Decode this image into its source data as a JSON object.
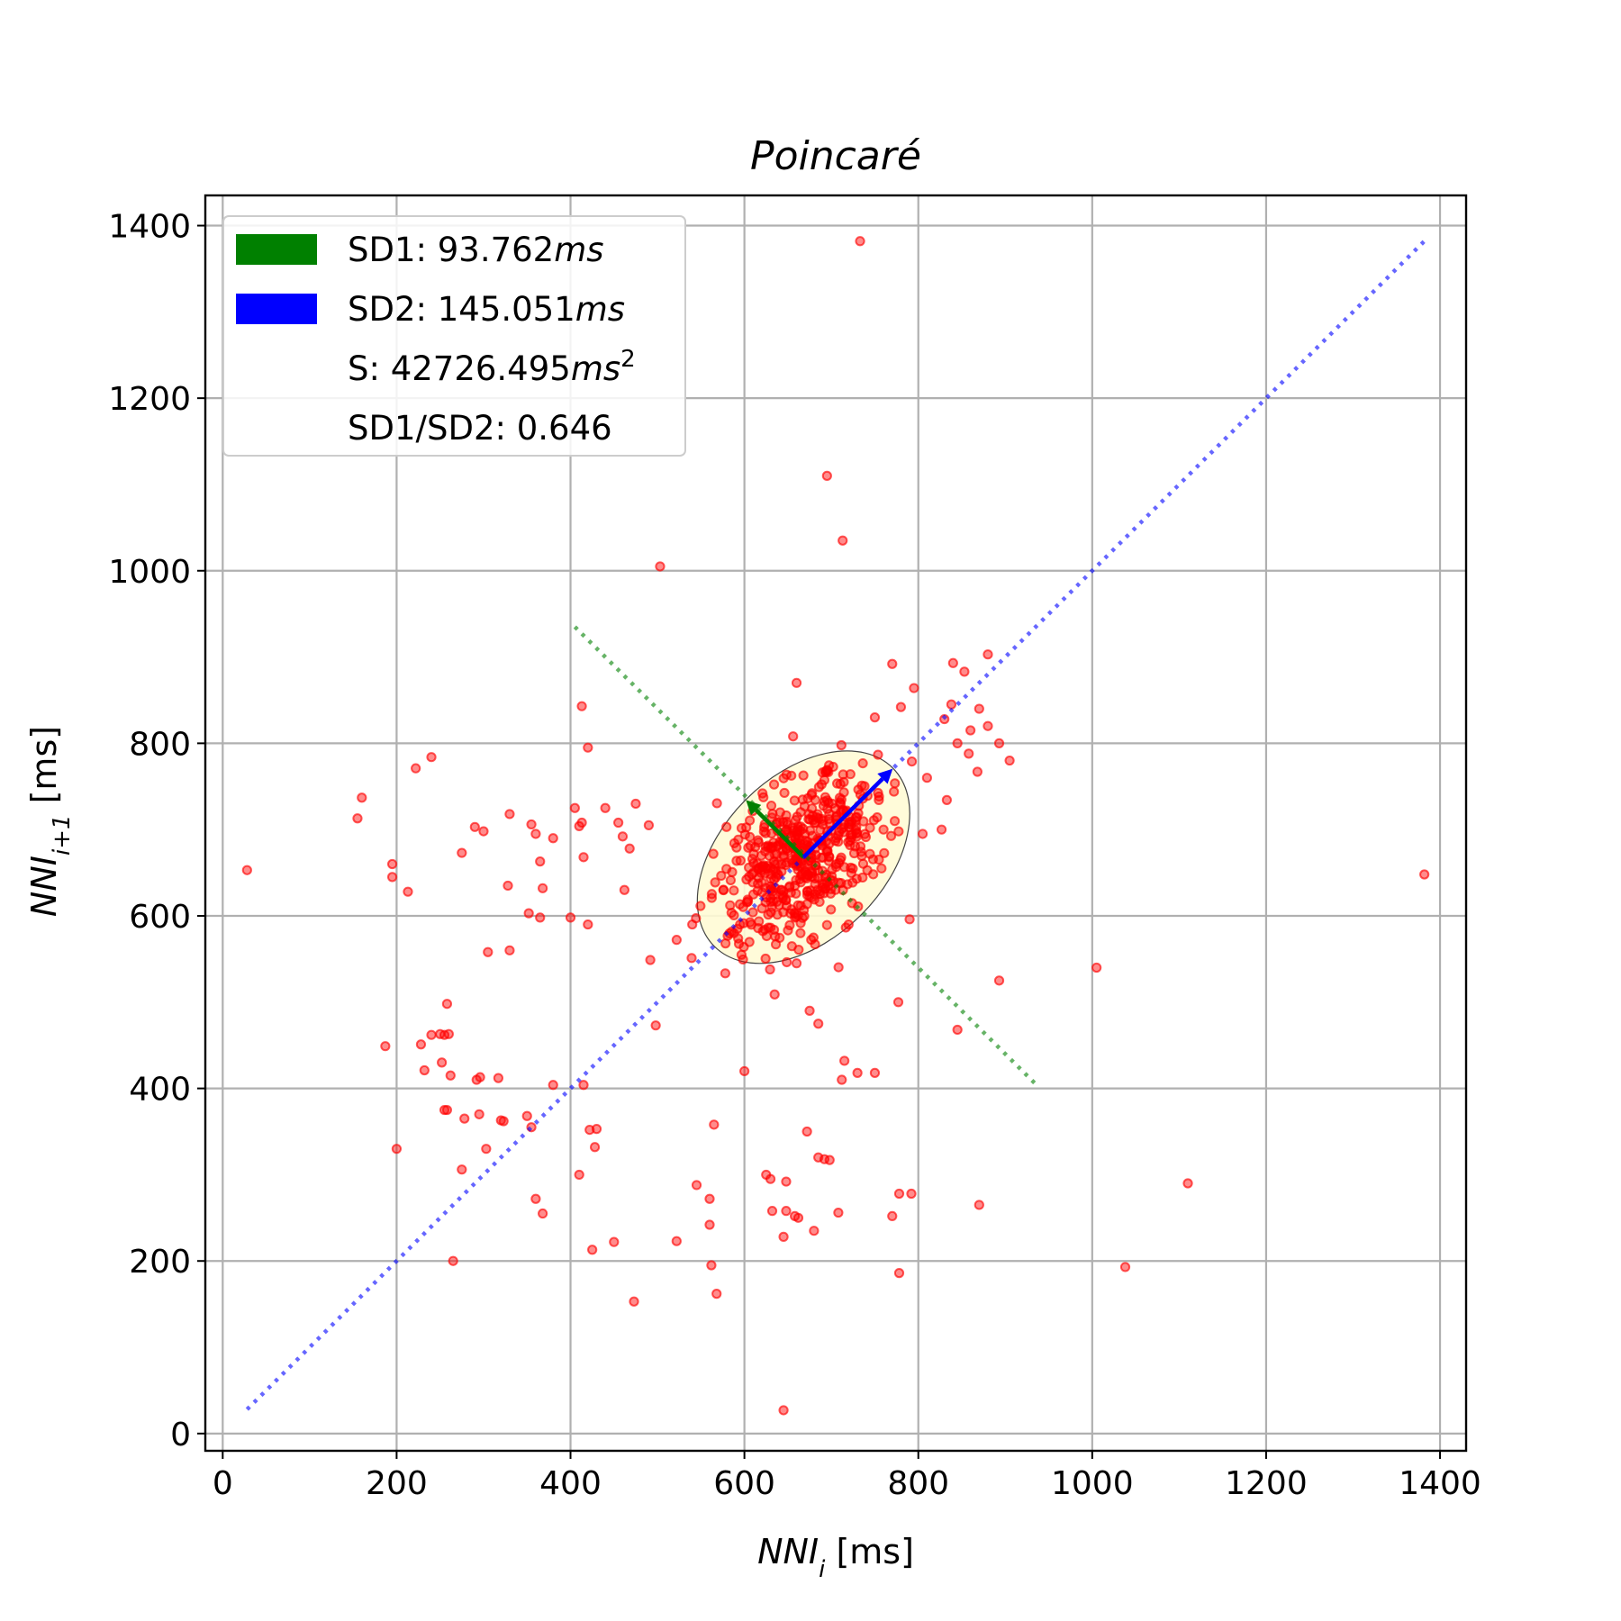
{
  "chart_data": {
    "type": "scatter",
    "title": "Poincaré",
    "xlabel": "NNI_i [ms]",
    "ylabel": "NNI_i+1 [ms]",
    "xlim": [
      -20,
      1430
    ],
    "ylim": [
      -20,
      1435
    ],
    "xticks": [
      0,
      200,
      400,
      600,
      800,
      1000,
      1200,
      1400
    ],
    "yticks": [
      0,
      200,
      400,
      600,
      800,
      1000,
      1200,
      1400
    ],
    "grid": true,
    "legend_position": "top-left",
    "legend": [
      {
        "label": "SD1: 93.762",
        "unit": "ms",
        "color": "#008000"
      },
      {
        "label": "SD2: 145.051",
        "unit": "ms",
        "color": "#0000ff"
      },
      {
        "label": "S: 42726.495",
        "unit": "ms",
        "unit_exp": "2",
        "color": ""
      },
      {
        "label": "SD1/SD2: 0.646",
        "unit": "",
        "color": ""
      }
    ],
    "center": [
      668,
      668
    ],
    "sd1": 93.762,
    "sd2": 145.051,
    "identity_line": {
      "from": [
        28,
        28
      ],
      "to": [
        1383,
        1383
      ],
      "color": "#0000ff"
    },
    "sd1_line": {
      "from": [
        405,
        935
      ],
      "to": [
        935,
        405
      ],
      "color": "#008000"
    },
    "ellipse": {
      "fill": "#fffbd5",
      "stroke": "#444444"
    },
    "marker_color": "#ff0000",
    "cluster": {
      "count": 520,
      "center": [
        668,
        668
      ],
      "spread_major": 60,
      "spread_minor": 35
    },
    "points": [
      [
        28,
        653
      ],
      [
        155,
        713
      ],
      [
        160,
        737
      ],
      [
        195,
        660
      ],
      [
        195,
        645
      ],
      [
        213,
        628
      ],
      [
        222,
        771
      ],
      [
        240,
        784
      ],
      [
        290,
        703
      ],
      [
        300,
        698
      ],
      [
        275,
        673
      ],
      [
        330,
        718
      ],
      [
        328,
        635
      ],
      [
        355,
        706
      ],
      [
        360,
        695
      ],
      [
        365,
        663
      ],
      [
        368,
        632
      ],
      [
        352,
        603
      ],
      [
        365,
        598
      ],
      [
        380,
        690
      ],
      [
        305,
        558
      ],
      [
        330,
        560
      ],
      [
        400,
        598
      ],
      [
        405,
        725
      ],
      [
        410,
        704
      ],
      [
        413,
        708
      ],
      [
        415,
        668
      ],
      [
        413,
        843
      ],
      [
        420,
        795
      ],
      [
        420,
        590
      ],
      [
        440,
        725
      ],
      [
        455,
        708
      ],
      [
        460,
        692
      ],
      [
        462,
        630
      ],
      [
        468,
        678
      ],
      [
        475,
        730
      ],
      [
        490,
        705
      ],
      [
        503,
        1005
      ],
      [
        498,
        473
      ],
      [
        540,
        590
      ],
      [
        595,
        590
      ],
      [
        592,
        585
      ],
      [
        588,
        580
      ],
      [
        695,
        1110
      ],
      [
        713,
        1035
      ],
      [
        733,
        1382
      ],
      [
        660,
        870
      ],
      [
        656,
        808
      ],
      [
        770,
        892
      ],
      [
        795,
        864
      ],
      [
        840,
        893
      ],
      [
        853,
        883
      ],
      [
        880,
        903
      ],
      [
        870,
        840
      ],
      [
        880,
        820
      ],
      [
        893,
        800
      ],
      [
        905,
        780
      ],
      [
        868,
        767
      ],
      [
        858,
        788
      ],
      [
        830,
        828
      ],
      [
        838,
        845
      ],
      [
        805,
        695
      ],
      [
        790,
        596
      ],
      [
        777,
        500
      ],
      [
        760,
        700
      ],
      [
        810,
        760
      ],
      [
        845,
        800
      ],
      [
        860,
        815
      ],
      [
        750,
        830
      ],
      [
        780,
        842
      ],
      [
        845,
        468
      ],
      [
        893,
        525
      ],
      [
        1005,
        540
      ],
      [
        1382,
        648
      ],
      [
        660,
        545
      ],
      [
        675,
        490
      ],
      [
        685,
        475
      ],
      [
        715,
        432
      ],
      [
        712,
        410
      ],
      [
        730,
        418
      ],
      [
        750,
        418
      ],
      [
        600,
        420
      ],
      [
        565,
        358
      ],
      [
        672,
        350
      ],
      [
        685,
        320
      ],
      [
        692,
        318
      ],
      [
        698,
        317
      ],
      [
        545,
        288
      ],
      [
        560,
        272
      ],
      [
        560,
        242
      ],
      [
        562,
        195
      ],
      [
        568,
        162
      ],
      [
        625,
        300
      ],
      [
        630,
        295
      ],
      [
        632,
        258
      ],
      [
        648,
        292
      ],
      [
        648,
        258
      ],
      [
        645,
        228
      ],
      [
        658,
        252
      ],
      [
        662,
        250
      ],
      [
        680,
        235
      ],
      [
        708,
        256
      ],
      [
        770,
        252
      ],
      [
        778,
        278
      ],
      [
        792,
        278
      ],
      [
        778,
        186
      ],
      [
        870,
        265
      ],
      [
        1110,
        290
      ],
      [
        1038,
        193
      ],
      [
        645,
        27
      ],
      [
        187,
        449
      ],
      [
        200,
        330
      ],
      [
        228,
        451
      ],
      [
        232,
        421
      ],
      [
        240,
        462
      ],
      [
        250,
        463
      ],
      [
        255,
        462
      ],
      [
        260,
        463
      ],
      [
        258,
        498
      ],
      [
        255,
        375
      ],
      [
        258,
        375
      ],
      [
        262,
        415
      ],
      [
        252,
        430
      ],
      [
        265,
        200
      ],
      [
        275,
        306
      ],
      [
        278,
        365
      ],
      [
        292,
        410
      ],
      [
        296,
        413
      ],
      [
        295,
        370
      ],
      [
        303,
        330
      ],
      [
        317,
        412
      ],
      [
        320,
        363
      ],
      [
        323,
        362
      ],
      [
        350,
        368
      ],
      [
        355,
        355
      ],
      [
        360,
        272
      ],
      [
        368,
        255
      ],
      [
        380,
        404
      ],
      [
        410,
        300
      ],
      [
        415,
        404
      ],
      [
        422,
        352
      ],
      [
        428,
        332
      ],
      [
        430,
        353
      ],
      [
        425,
        213
      ],
      [
        450,
        222
      ],
      [
        473,
        153
      ],
      [
        522,
        223
      ]
    ]
  }
}
